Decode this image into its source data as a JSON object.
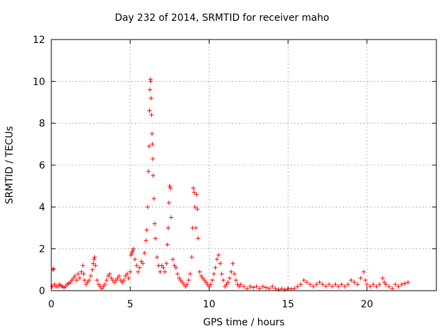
{
  "chart_data": {
    "type": "scatter",
    "title": "Day 232 of 2014, SRMTID for receiver maho",
    "xlabel": "GPS time / hours",
    "ylabel": "SRMTID / TECUs",
    "xlim": [
      0,
      24.4
    ],
    "ylim": [
      0,
      12
    ],
    "xticks": [
      0,
      5,
      10,
      15,
      20
    ],
    "yticks": [
      0,
      2,
      4,
      6,
      8,
      10,
      12
    ],
    "grid": true,
    "marker": "+",
    "color": "#ff0000",
    "series": [
      {
        "name": "SRMTID",
        "x": [
          0.05,
          0.1,
          0.15,
          0.2,
          0.3,
          0.4,
          0.5,
          0.6,
          0.7,
          0.8,
          0.9,
          1.0,
          1.1,
          1.2,
          1.3,
          1.4,
          1.5,
          1.6,
          1.7,
          1.8,
          1.9,
          2.0,
          2.05,
          2.1,
          2.2,
          2.3,
          2.4,
          2.5,
          2.6,
          2.65,
          2.7,
          2.75,
          2.8,
          2.9,
          3.0,
          3.1,
          3.2,
          3.3,
          3.4,
          3.5,
          3.6,
          3.7,
          3.8,
          3.9,
          4.0,
          4.1,
          4.2,
          4.3,
          4.4,
          4.5,
          4.6,
          4.7,
          4.8,
          4.9,
          5.0,
          5.05,
          5.1,
          5.15,
          5.2,
          5.3,
          5.4,
          5.5,
          5.6,
          5.7,
          5.8,
          5.9,
          6.0,
          6.05,
          6.1,
          6.15,
          6.2,
          6.22,
          6.25,
          6.28,
          6.3,
          6.32,
          6.35,
          6.38,
          6.4,
          6.42,
          6.45,
          6.5,
          6.55,
          6.6,
          6.7,
          6.8,
          6.9,
          7.0,
          7.1,
          7.2,
          7.3,
          7.35,
          7.4,
          7.45,
          7.5,
          7.55,
          7.6,
          7.7,
          7.8,
          7.9,
          8.0,
          8.1,
          8.2,
          8.3,
          8.4,
          8.5,
          8.6,
          8.7,
          8.8,
          8.9,
          8.95,
          9.0,
          9.05,
          9.1,
          9.15,
          9.2,
          9.25,
          9.3,
          9.4,
          9.5,
          9.6,
          9.7,
          9.8,
          9.9,
          10.0,
          10.1,
          10.2,
          10.3,
          10.4,
          10.5,
          10.6,
          10.7,
          10.8,
          10.9,
          11.0,
          11.1,
          11.2,
          11.3,
          11.4,
          11.5,
          11.6,
          11.7,
          11.8,
          11.9,
          12.0,
          12.2,
          12.4,
          12.6,
          12.8,
          13.0,
          13.2,
          13.4,
          13.6,
          13.8,
          14.0,
          14.2,
          14.4,
          14.6,
          14.8,
          15.0,
          15.2,
          15.4,
          15.6,
          15.8,
          16.0,
          16.2,
          16.4,
          16.6,
          16.8,
          17.0,
          17.2,
          17.4,
          17.6,
          17.8,
          18.0,
          18.2,
          18.4,
          18.6,
          18.8,
          19.0,
          19.2,
          19.4,
          19.6,
          19.8,
          19.9,
          20.0,
          20.2,
          20.4,
          20.6,
          20.8,
          21.0,
          21.1,
          21.2,
          21.4,
          21.6,
          21.8,
          22.0,
          22.2,
          22.4,
          22.6
        ],
        "y": [
          0.2,
          1.0,
          1.05,
          0.3,
          0.2,
          0.2,
          0.3,
          0.25,
          0.2,
          0.15,
          0.2,
          0.3,
          0.35,
          0.4,
          0.5,
          0.6,
          0.7,
          0.5,
          0.8,
          0.6,
          0.9,
          1.2,
          0.8,
          0.5,
          0.3,
          0.4,
          0.5,
          0.7,
          1.0,
          1.3,
          1.5,
          1.6,
          1.2,
          0.5,
          0.3,
          0.2,
          0.1,
          0.2,
          0.3,
          0.5,
          0.7,
          0.8,
          0.6,
          0.5,
          0.4,
          0.5,
          0.6,
          0.7,
          0.5,
          0.4,
          0.5,
          0.7,
          0.8,
          0.6,
          0.9,
          1.7,
          1.8,
          1.9,
          2.0,
          1.5,
          1.2,
          0.9,
          1.1,
          1.4,
          1.3,
          1.8,
          2.4,
          2.9,
          4.0,
          5.7,
          6.9,
          8.6,
          9.6,
          10.1,
          10.0,
          9.2,
          8.4,
          7.5,
          7.0,
          6.3,
          5.5,
          4.4,
          3.2,
          2.5,
          1.6,
          1.2,
          0.9,
          1.2,
          1.1,
          0.9,
          1.3,
          2.2,
          3.0,
          4.2,
          5.0,
          4.9,
          3.5,
          1.5,
          1.2,
          1.1,
          0.8,
          0.6,
          0.5,
          0.4,
          0.3,
          0.2,
          0.3,
          0.5,
          0.8,
          1.6,
          3.0,
          4.9,
          4.7,
          4.0,
          3.0,
          4.6,
          3.9,
          2.5,
          0.9,
          0.7,
          0.6,
          0.5,
          0.4,
          0.3,
          0.2,
          0.3,
          0.5,
          0.8,
          1.1,
          1.5,
          1.7,
          1.3,
          0.8,
          0.5,
          0.2,
          0.3,
          0.4,
          0.6,
          0.9,
          1.3,
          0.8,
          0.5,
          0.3,
          0.2,
          0.3,
          0.2,
          0.1,
          0.2,
          0.15,
          0.2,
          0.1,
          0.2,
          0.15,
          0.1,
          0.2,
          0.1,
          0.05,
          0.1,
          0.05,
          0.1,
          0.08,
          0.1,
          0.2,
          0.3,
          0.5,
          0.4,
          0.3,
          0.2,
          0.3,
          0.4,
          0.3,
          0.2,
          0.3,
          0.2,
          0.3,
          0.2,
          0.3,
          0.2,
          0.3,
          0.5,
          0.4,
          0.3,
          0.6,
          0.9,
          0.5,
          0.3,
          0.2,
          0.3,
          0.2,
          0.3,
          0.6,
          0.4,
          0.3,
          0.2,
          0.1,
          0.3,
          0.2,
          0.3,
          0.35,
          0.4
        ]
      }
    ]
  }
}
